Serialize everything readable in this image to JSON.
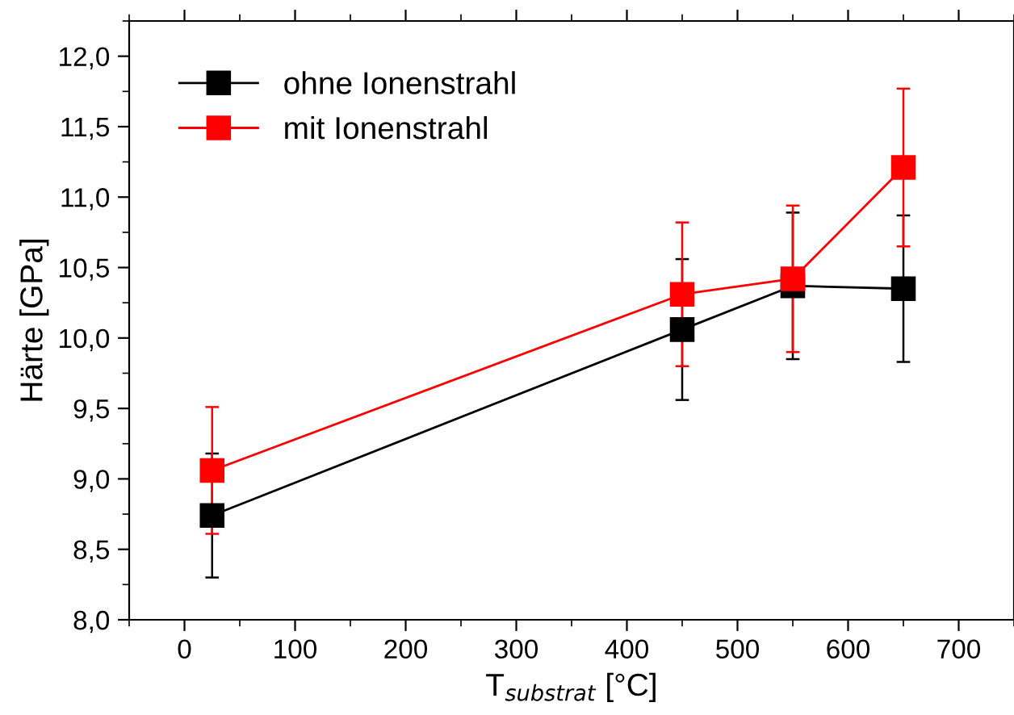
{
  "chart_data": {
    "type": "line",
    "xlabel": "T$_{substrat}$ [°C]",
    "ylabel": "Härte [GPa]",
    "x": [
      25,
      450,
      550,
      650
    ],
    "series": [
      {
        "name": "ohne Ionenstrahl",
        "color": "#000000",
        "values": [
          8.74,
          10.06,
          10.37,
          10.35
        ],
        "errors": [
          0.44,
          0.5,
          0.52,
          0.52
        ]
      },
      {
        "name": "mit Ionenstrahl",
        "color": "#ff0000",
        "values": [
          9.06,
          10.31,
          10.42,
          11.21
        ],
        "errors": [
          0.45,
          0.51,
          0.52,
          0.56
        ]
      }
    ],
    "xlim": [
      -50,
      750
    ],
    "xticks": [
      0,
      100,
      200,
      300,
      400,
      500,
      600,
      700
    ],
    "ylim": [
      8.0,
      12.25
    ],
    "yticks": [
      {
        "value": 8.0,
        "label": "8,0"
      },
      {
        "value": 8.5,
        "label": "8,5"
      },
      {
        "value": 9.0,
        "label": "9,0"
      },
      {
        "value": 9.5,
        "label": "9,5"
      },
      {
        "value": 10.0,
        "label": "10,0"
      },
      {
        "value": 10.5,
        "label": "10,5"
      },
      {
        "value": 11.0,
        "label": "11,0"
      },
      {
        "value": 11.5,
        "label": "11,5"
      },
      {
        "value": 12.0,
        "label": "12,0"
      }
    ],
    "marker": "square",
    "line_style": "solid",
    "legend": "top left",
    "grid": false
  }
}
